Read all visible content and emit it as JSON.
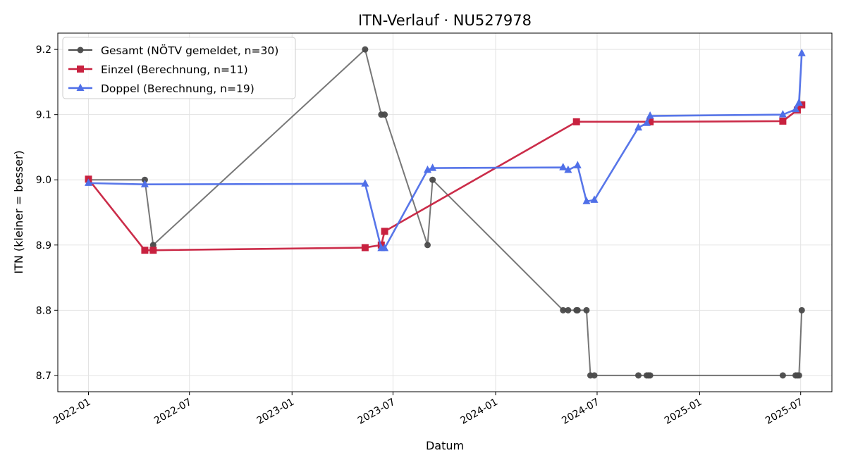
{
  "chart_data": {
    "type": "line",
    "title": "ITN-Verlauf · NU527978",
    "xlabel": "Datum",
    "ylabel": "ITN  (kleiner = besser)",
    "x_type": "date",
    "xlim": [
      "2021-11-07",
      "2025-08-26"
    ],
    "ylim": [
      8.675,
      9.225
    ],
    "grid": true,
    "legend_position": "top-left",
    "x_ticks": [
      "2022-01-01",
      "2022-07-01",
      "2023-01-01",
      "2023-07-01",
      "2024-01-01",
      "2024-07-01",
      "2025-01-01",
      "2025-07-01"
    ],
    "x_tick_labels": [
      "2022-01",
      "2022-07",
      "2023-01",
      "2023-07",
      "2024-01",
      "2024-07",
      "2025-01",
      "2025-07"
    ],
    "y_ticks": [
      8.7,
      8.8,
      8.9,
      9.0,
      9.1,
      9.2
    ],
    "y_tick_labels": [
      "8.7",
      "8.8",
      "8.9",
      "9.0",
      "9.1",
      "9.2"
    ],
    "series": [
      {
        "name": "Gesamt (NÖTV gemeldet, n=30)",
        "color": "#4a4a4a",
        "marker": "circle",
        "points": [
          [
            "2022-01-01",
            9.0
          ],
          [
            "2022-04-12",
            9.0
          ],
          [
            "2022-04-27",
            8.9
          ],
          [
            "2023-05-12",
            9.2
          ],
          [
            "2023-06-10",
            9.1
          ],
          [
            "2023-06-16",
            9.1
          ],
          [
            "2023-09-01",
            8.9
          ],
          [
            "2023-09-10",
            9.0
          ],
          [
            "2024-05-01",
            8.8
          ],
          [
            "2024-05-10",
            8.8
          ],
          [
            "2024-05-25",
            8.8
          ],
          [
            "2024-05-27",
            8.8
          ],
          [
            "2024-06-12",
            8.8
          ],
          [
            "2024-06-19",
            8.7
          ],
          [
            "2024-06-26",
            8.7
          ],
          [
            "2024-09-13",
            8.7
          ],
          [
            "2024-09-28",
            8.7
          ],
          [
            "2024-10-01",
            8.7
          ],
          [
            "2024-10-04",
            8.7
          ],
          [
            "2025-05-30",
            8.7
          ],
          [
            "2025-06-22",
            8.7
          ],
          [
            "2025-06-25",
            8.7
          ],
          [
            "2025-06-28",
            8.7
          ],
          [
            "2025-07-03",
            8.8
          ]
        ]
      },
      {
        "name": "Einzel (Berechnung, n=11)",
        "color": "#c8213f",
        "marker": "square",
        "points": [
          [
            "2022-01-01",
            9.001
          ],
          [
            "2022-04-12",
            8.892
          ],
          [
            "2022-04-27",
            8.892
          ],
          [
            "2023-05-12",
            8.896
          ],
          [
            "2023-06-10",
            8.9
          ],
          [
            "2023-06-16",
            8.921
          ],
          [
            "2024-05-25",
            9.089
          ],
          [
            "2024-10-04",
            9.089
          ],
          [
            "2025-05-30",
            9.09
          ],
          [
            "2025-06-25",
            9.107
          ],
          [
            "2025-07-03",
            9.115
          ]
        ]
      },
      {
        "name": "Doppel (Berechnung, n=19)",
        "color": "#4f6fe8",
        "marker": "triangle",
        "points": [
          [
            "2022-01-01",
            8.995
          ],
          [
            "2022-04-12",
            8.993
          ],
          [
            "2023-05-12",
            8.994
          ],
          [
            "2023-06-10",
            8.895
          ],
          [
            "2023-06-16",
            8.895
          ],
          [
            "2023-09-01",
            9.015
          ],
          [
            "2023-09-10",
            9.018
          ],
          [
            "2024-05-01",
            9.019
          ],
          [
            "2024-05-10",
            9.015
          ],
          [
            "2024-05-27",
            9.022
          ],
          [
            "2024-06-12",
            8.967
          ],
          [
            "2024-06-26",
            8.969
          ],
          [
            "2024-09-13",
            9.08
          ],
          [
            "2024-09-28",
            9.087
          ],
          [
            "2024-10-04",
            9.098
          ],
          [
            "2025-05-30",
            9.1
          ],
          [
            "2025-06-22",
            9.108
          ],
          [
            "2025-06-28",
            9.118
          ],
          [
            "2025-07-03",
            9.194
          ]
        ]
      }
    ]
  }
}
